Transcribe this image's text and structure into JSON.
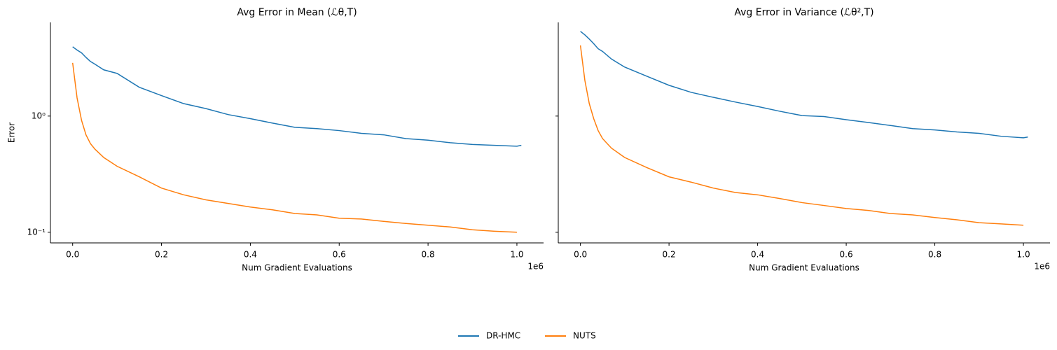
{
  "chart_data": [
    {
      "type": "line",
      "title": "Avg Error in Mean (ℒθ,T)",
      "xlabel": "Num Gradient Evaluations",
      "ylabel": "Error",
      "x_offset_label": "1e6",
      "x": [
        0,
        0.01,
        0.02,
        0.03,
        0.04,
        0.05,
        0.07,
        0.1,
        0.15,
        0.2,
        0.25,
        0.3,
        0.35,
        0.4,
        0.45,
        0.5,
        0.55,
        0.6,
        0.65,
        0.7,
        0.75,
        0.8,
        0.85,
        0.9,
        0.95,
        1.0,
        1.01
      ],
      "series": [
        {
          "name": "DR-HMC",
          "color": "#1f77b4",
          "values": [
            3.95,
            3.7,
            3.5,
            3.2,
            2.95,
            2.8,
            2.5,
            2.33,
            1.77,
            1.5,
            1.28,
            1.16,
            1.03,
            0.95,
            0.87,
            0.8,
            0.78,
            0.75,
            0.71,
            0.69,
            0.64,
            0.62,
            0.59,
            0.57,
            0.56,
            0.55,
            0.56
          ]
        },
        {
          "name": "NUTS",
          "color": "#ff7f0e",
          "values": [
            2.87,
            1.43,
            0.92,
            0.69,
            0.58,
            0.52,
            0.44,
            0.37,
            0.3,
            0.24,
            0.21,
            0.19,
            0.177,
            0.165,
            0.156,
            0.145,
            0.141,
            0.132,
            0.13,
            0.124,
            0.119,
            0.115,
            0.111,
            0.105,
            0.102,
            0.1,
            null
          ]
        }
      ],
      "xlim": [
        -0.05,
        1.06
      ],
      "xticks": [
        {
          "value": 0,
          "label": "0.0"
        },
        0.2,
        0.4,
        0.6,
        0.8,
        {
          "value": 1,
          "label": "1.0"
        }
      ],
      "ylim": [
        0.081,
        6.4
      ],
      "yscale": "log",
      "yticks": [
        {
          "value": 0.1,
          "label": "10⁻¹"
        },
        {
          "value": 1,
          "label": "10⁰"
        }
      ]
    },
    {
      "type": "line",
      "title": "Avg Error in Variance (ℒθ²,T)",
      "xlabel": "Num Gradient Evaluations",
      "x_offset_label": "1e6",
      "x": [
        0,
        0.01,
        0.02,
        0.03,
        0.04,
        0.05,
        0.07,
        0.1,
        0.15,
        0.2,
        0.25,
        0.3,
        0.35,
        0.4,
        0.45,
        0.5,
        0.55,
        0.6,
        0.65,
        0.7,
        0.75,
        0.8,
        0.85,
        0.9,
        0.95,
        1.0,
        1.01
      ],
      "series": [
        {
          "name": "DR-HMC",
          "color": "#1f77b4",
          "values": [
            5.36,
            5.0,
            4.6,
            4.2,
            3.8,
            3.6,
            3.1,
            2.64,
            2.2,
            1.84,
            1.6,
            1.45,
            1.32,
            1.21,
            1.1,
            1.01,
            0.99,
            0.93,
            0.88,
            0.83,
            0.78,
            0.76,
            0.73,
            0.71,
            0.67,
            0.65,
            0.66
          ]
        },
        {
          "name": "NUTS",
          "color": "#ff7f0e",
          "values": [
            4.06,
            2.03,
            1.28,
            0.95,
            0.75,
            0.64,
            0.53,
            0.44,
            0.36,
            0.3,
            0.27,
            0.24,
            0.22,
            0.21,
            0.195,
            0.18,
            0.17,
            0.16,
            0.154,
            0.145,
            0.141,
            0.134,
            0.128,
            0.121,
            0.118,
            0.115,
            null
          ]
        }
      ],
      "xlim": [
        -0.05,
        1.06
      ],
      "xticks": [
        {
          "value": 0,
          "label": "0.0"
        },
        0.2,
        0.4,
        0.6,
        0.8,
        {
          "value": 1,
          "label": "1.0"
        }
      ],
      "ylim": [
        0.081,
        6.4
      ],
      "yscale": "log",
      "yticks": [
        {
          "value": 0.1
        },
        {
          "value": 1
        }
      ]
    }
  ]
}
